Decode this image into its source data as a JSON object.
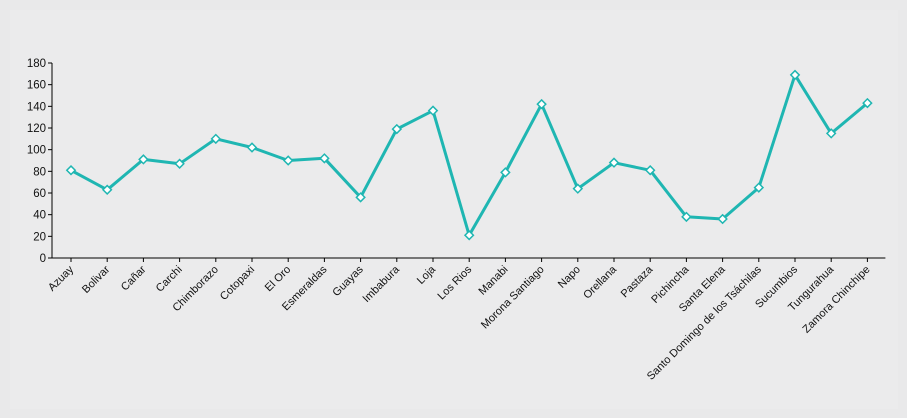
{
  "chart_data": {
    "type": "line",
    "title": "",
    "xlabel": "",
    "ylabel": "",
    "ylim": [
      0,
      180
    ],
    "yticks": [
      0,
      20,
      40,
      60,
      80,
      100,
      120,
      140,
      160,
      180
    ],
    "grid": false,
    "legend": "none",
    "colors": {
      "line": "#1fb6b2",
      "marker_fill": "#ffffff",
      "axis": "#000000",
      "background": "#ebebec"
    },
    "categories": [
      "Azuay",
      "Bolivar",
      "Cañar",
      "Carchi",
      "Chimborazo",
      "Cotopaxi",
      "El Oro",
      "Esmeraldas",
      "Guayas",
      "Imbabura",
      "Loja",
      "Los Rios",
      "Manabi",
      "Morona Santiago",
      "Napo",
      "Orellana",
      "Pastaza",
      "Pichincha",
      "Santa Elena",
      "Santo Domingo de los Tsáchilas",
      "Sucumbios",
      "Tungurahua",
      "Zamora Chinchipe"
    ],
    "series": [
      {
        "values": [
          81,
          63,
          91,
          87,
          110,
          102,
          90,
          92,
          56,
          119,
          136,
          21,
          79,
          142,
          64,
          88,
          81,
          38,
          36,
          65,
          169,
          115,
          143
        ]
      }
    ]
  }
}
